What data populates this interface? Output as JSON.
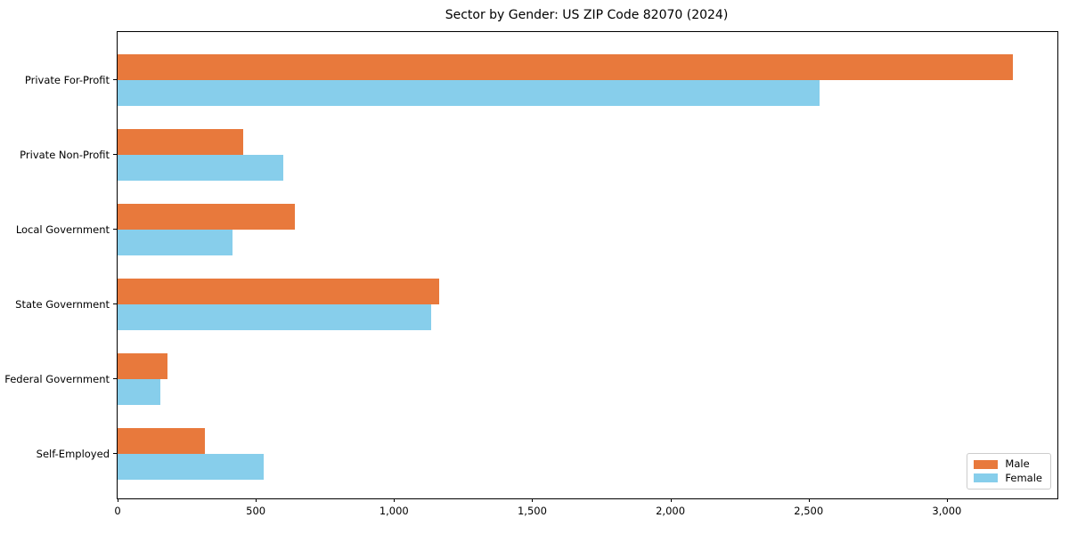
{
  "title": "Sector by Gender: US ZIP Code 82070 (2024)",
  "colors": {
    "male": "#E8793C",
    "female": "#87CEEB",
    "spine": "#000000",
    "legend_border": "#cccccc",
    "background": "#ffffff"
  },
  "legend": {
    "position": "lower right",
    "entries": [
      {
        "label": "Male",
        "color": "#E8793C"
      },
      {
        "label": "Female",
        "color": "#87CEEB"
      }
    ]
  },
  "chart_data": {
    "type": "bar",
    "orientation": "horizontal",
    "title": "Sector by Gender: US ZIP Code 82070 (2024)",
    "xlabel": "",
    "ylabel": "",
    "categories": [
      "Private For-Profit",
      "Private Non-Profit",
      "Local Government",
      "State Government",
      "Federal Government",
      "Self-Employed"
    ],
    "series": [
      {
        "name": "Male",
        "color": "#E8793C",
        "values": [
          3240,
          455,
          640,
          1165,
          180,
          315
        ]
      },
      {
        "name": "Female",
        "color": "#87CEEB",
        "values": [
          2540,
          600,
          415,
          1135,
          155,
          530
        ]
      }
    ],
    "xlim": [
      0,
      3400
    ],
    "xticks": [
      0,
      500,
      1000,
      1500,
      2000,
      2500,
      3000
    ],
    "xtick_labels": [
      "0",
      "500",
      "1,000",
      "1,500",
      "2,000",
      "2,500",
      "3,000"
    ],
    "grid": false,
    "legend_position": "lower right"
  }
}
